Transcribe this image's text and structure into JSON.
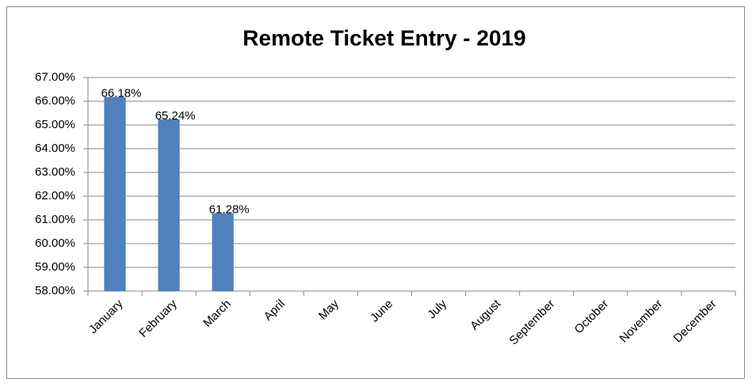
{
  "chart_data": {
    "type": "bar",
    "title": "Remote Ticket Entry - 2019",
    "categories": [
      "January",
      "February",
      "March",
      "April",
      "May",
      "June",
      "July",
      "August",
      "September",
      "October",
      "November",
      "December"
    ],
    "values": [
      66.18,
      65.24,
      61.28,
      null,
      null,
      null,
      null,
      null,
      null,
      null,
      null,
      null
    ],
    "value_labels": [
      "66.18%",
      "65.24%",
      "61.28%",
      null,
      null,
      null,
      null,
      null,
      null,
      null,
      null,
      null
    ],
    "color": "#4f81bd",
    "ylim": [
      58,
      67
    ],
    "yticks": [
      {
        "value": 58,
        "label": "58.00%"
      },
      {
        "value": 59,
        "label": "59.00%"
      },
      {
        "value": 60,
        "label": "60.00%"
      },
      {
        "value": 61,
        "label": "61.00%"
      },
      {
        "value": 62,
        "label": "62.00%"
      },
      {
        "value": 63,
        "label": "63.00%"
      },
      {
        "value": 64,
        "label": "64.00%"
      },
      {
        "value": 65,
        "label": "65.00%"
      },
      {
        "value": 66,
        "label": "66.00%"
      },
      {
        "value": 67,
        "label": "67.00%"
      }
    ],
    "grid": true
  }
}
